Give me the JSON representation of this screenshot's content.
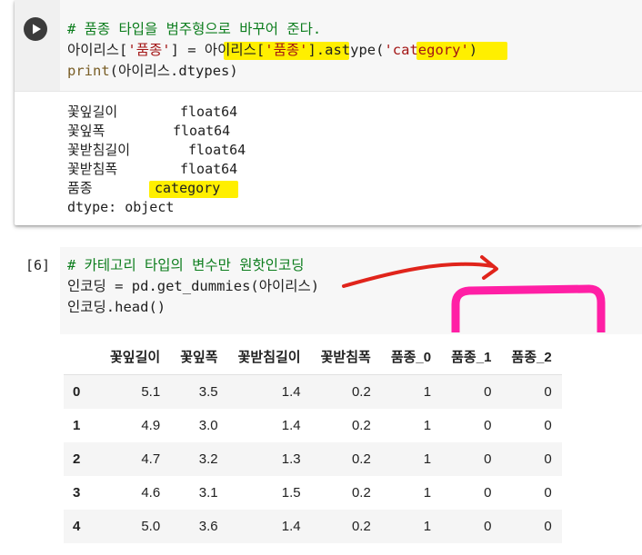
{
  "cell1": {
    "code": {
      "comment": "# 품종 타입을 범주형으로 바꾸어 준다.",
      "l2_var": "아이리스[",
      "l2_key": "'품종'",
      "l2_mid": "] = ",
      "l2_var2": "아이리스[",
      "l2_key2": "'품종'",
      "l2_call": "].astype(",
      "l2_arg": "'category'",
      "l2_close": ")",
      "l3_fn": "print",
      "l3_rest": "(아이리스.dtypes)"
    },
    "output": [
      {
        "name": "꽃잎길이",
        "type": "float64"
      },
      {
        "name": "꽃잎폭",
        "type": "float64"
      },
      {
        "name": "꽃받침길이",
        "type": "float64"
      },
      {
        "name": "꽃받침폭",
        "type": "float64"
      },
      {
        "name": "품종",
        "type": "category"
      }
    ],
    "dtype_line": "dtype: object"
  },
  "cell2": {
    "exec_count": "[6]",
    "code": {
      "comment": "# 카테고리 타입의 변수만 원핫인코딩",
      "line2": "인코딩 = pd.get_dummies(아이리스)",
      "line3": "인코딩.head()"
    }
  },
  "table": {
    "columns": [
      "꽃잎길이",
      "꽃잎폭",
      "꽃받침길이",
      "꽃받침폭",
      "품종_0",
      "품종_1",
      "품종_2"
    ],
    "rows": [
      {
        "index": "0",
        "values": [
          "5.1",
          "3.5",
          "1.4",
          "0.2",
          "1",
          "0",
          "0"
        ]
      },
      {
        "index": "1",
        "values": [
          "4.9",
          "3.0",
          "1.4",
          "0.2",
          "1",
          "0",
          "0"
        ]
      },
      {
        "index": "2",
        "values": [
          "4.7",
          "3.2",
          "1.3",
          "0.2",
          "1",
          "0",
          "0"
        ]
      },
      {
        "index": "3",
        "values": [
          "4.6",
          "3.1",
          "1.5",
          "0.2",
          "1",
          "0",
          "0"
        ]
      },
      {
        "index": "4",
        "values": [
          "5.0",
          "3.6",
          "1.4",
          "0.2",
          "1",
          "0",
          "0"
        ]
      }
    ]
  },
  "colors": {
    "highlight": "#ffef00",
    "arrow": "#e0241b",
    "bracket": "#ff1fa5",
    "comment": "#0c7d1d",
    "string": "#a31515"
  },
  "icons": {
    "run": "play-icon"
  }
}
